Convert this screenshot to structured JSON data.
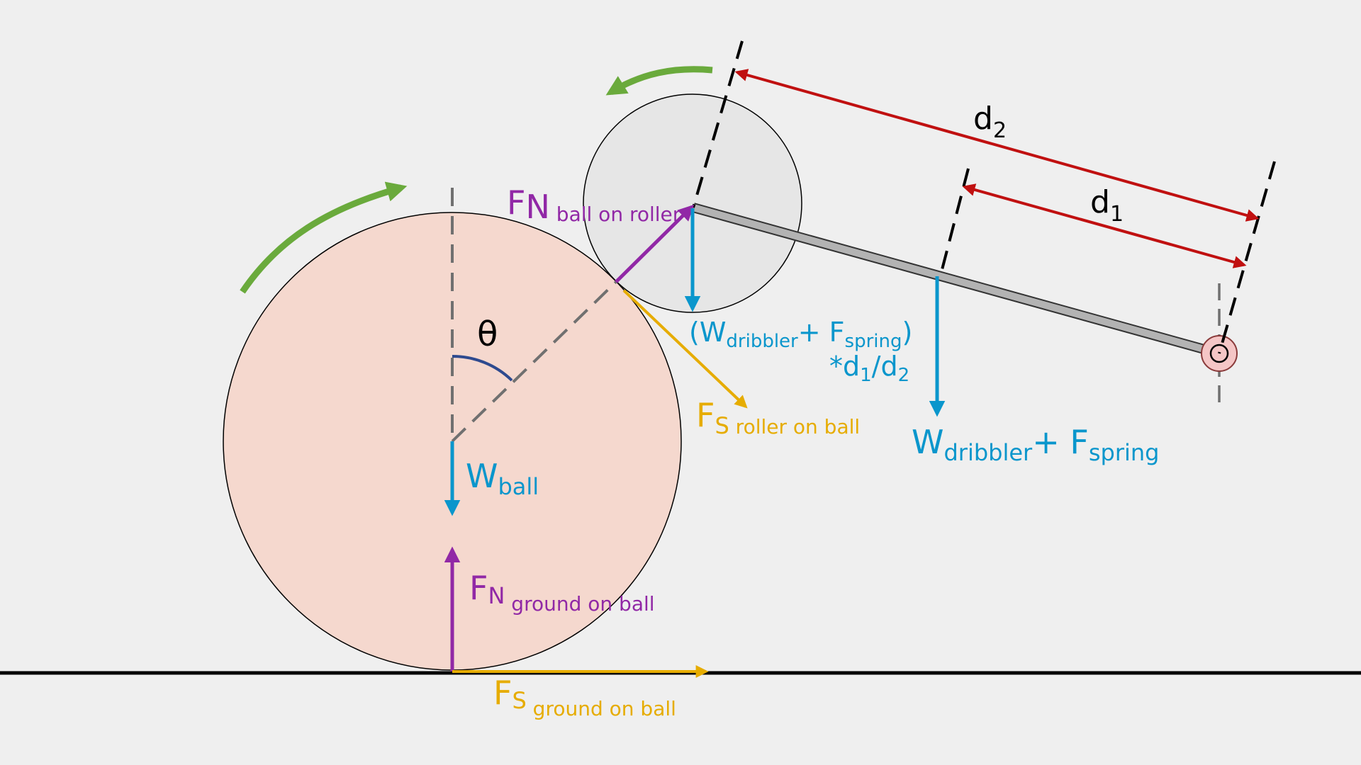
{
  "colors": {
    "background": "#efefef",
    "ball_fill": "#f5d8ce",
    "roller_fill": "#e6e6e6",
    "arm_fill": "#b3b3b3",
    "pivot_fill": "#f5c6c6",
    "normal_force": "#9128a6",
    "friction_force": "#e6ac00",
    "weight_force": "#0a96cc",
    "rotation": "#6aaa3c",
    "distance": "#c01010",
    "angle_arc": "#2e4a8f",
    "reference_line": "#707070",
    "black": "#000000"
  },
  "labels": {
    "fn_ball_on_roller": {
      "main": "F",
      "sub1": "N",
      "sub2": " ball on roller"
    },
    "theta": "θ",
    "fs_roller_on_ball": {
      "main": "F",
      "sub1": "S",
      "sub2": " roller on ball"
    },
    "w_ball": {
      "main": "W",
      "sub": "ball"
    },
    "fn_ground_on_ball": {
      "main": "F",
      "sub1": "N",
      "sub2": " ground on ball"
    },
    "fs_ground_on_ball": {
      "main": "F",
      "sub1": "S",
      "sub2": " ground on ball"
    },
    "scaled_force": {
      "open": "(W",
      "sub_dribbler": "dribbler",
      "plus": "+ F",
      "sub_spring": "spring",
      "close": ")",
      "line2_a": "*d",
      "line2_sub1": "1",
      "line2_b": "/d",
      "line2_sub2": "2"
    },
    "arm_force": {
      "w": "W",
      "sub_dribbler": "dribbler",
      "plus": "+ F",
      "sub_spring": "spring"
    },
    "d1": {
      "main": "d",
      "sub": "1"
    },
    "d2": {
      "main": "d",
      "sub": "2"
    }
  }
}
